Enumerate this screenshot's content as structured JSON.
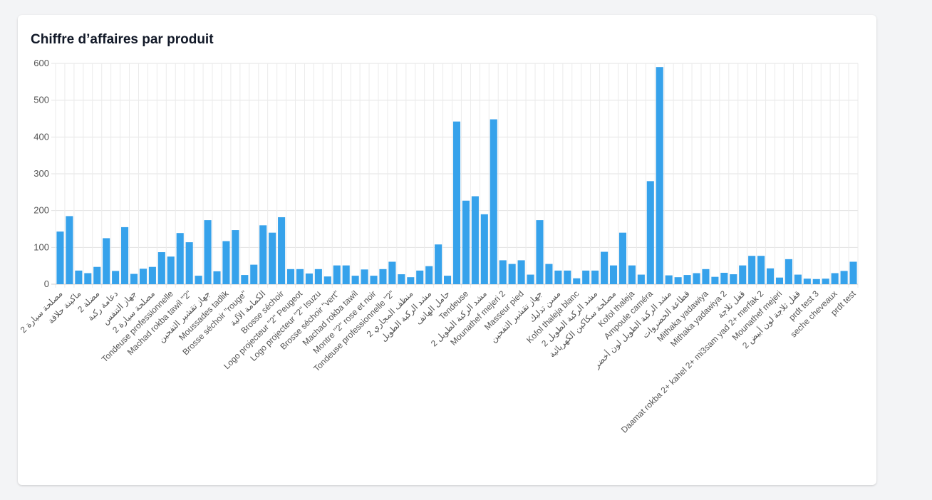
{
  "chart_data": {
    "type": "bar",
    "title": "Chiffre d’affaires par produit",
    "xlabel": "",
    "ylabel": "",
    "ylim": [
      0,
      600
    ],
    "yticks": [
      0,
      100,
      200,
      300,
      400,
      500,
      600
    ],
    "grid": true,
    "legend": "none",
    "bar_color": "#36a2eb",
    "categories": [
      "مصلحة سيارة 2",
      "",
      "ماكينة حلاقة",
      "",
      "مضلة 2",
      "",
      "دعامة ركبة",
      "",
      "جهاز التنفس",
      "",
      "مصلحة سيارة 2",
      "",
      "Tondeuse professionnelle",
      "",
      "Machad rokba tawil \"2\"",
      "",
      "جهاز تقشير التفحين",
      "",
      "Moussades tadlik",
      "",
      "Brosse séchoir \"rouge\"",
      "",
      "الكمامة الآلية",
      "",
      "Brosse séchoir",
      "",
      "Logo projecteur \"2\" Peugeot",
      "",
      "Logo projecteur \"2\" Isuzu",
      "",
      "Brosse séchoir \"vert\"",
      "",
      "Machad rokba tawil",
      "",
      "Montre \"2\" rose et noir",
      "",
      "Tondeuse professionnelle \"2\"",
      "",
      "منظف المجاري 2",
      "",
      "مشد الركبة الطويل",
      "",
      "حامل الهاتف",
      "",
      "Tendeuse",
      "",
      "مشد الركبة الطويل 2",
      "",
      "Mounathef mejeri 2",
      "",
      "Masseur pied",
      "",
      "جهاز تقشير التفحين",
      "",
      "مسن تدليك",
      "",
      "Kofol thaleja blanc",
      "",
      "مشد الركبة الطويل 2",
      "",
      "مصلحة سكاكين الكهربائية",
      "",
      "Kofol thaleja",
      "",
      "Ampoule caméra",
      "",
      "مشد الركبة الطويل لون أخضر",
      "",
      "قطاعة الخضروات",
      "",
      "Mithaka yadawiya",
      "",
      "Mithaka yadawiya 2",
      "",
      "قفل ثلاجة",
      "",
      "Daamat rokba 2+ kahel 2+ mi3sam yad 2+ merfak 2",
      "",
      "Mounathef mejeri",
      "",
      "قفل ثلاجة لون أبيض 2",
      "",
      "prdt test 3",
      "",
      "seche cheveaux",
      "",
      "prdt test"
    ],
    "values": [
      143,
      185,
      37,
      30,
      47,
      125,
      36,
      155,
      28,
      42,
      47,
      87,
      75,
      139,
      114,
      23,
      174,
      35,
      117,
      147,
      25,
      53,
      160,
      140,
      182,
      41,
      41,
      29,
      41,
      21,
      51,
      51,
      23,
      40,
      23,
      41,
      61,
      27,
      19,
      37,
      49,
      108,
      23,
      442,
      227,
      239,
      190,
      448,
      65,
      55,
      65,
      26,
      174,
      55,
      37,
      37,
      16,
      37,
      37,
      88,
      51,
      140,
      51,
      26,
      280,
      590,
      24,
      19,
      25,
      30,
      41,
      20,
      31,
      27,
      51,
      77,
      77,
      43,
      18,
      68,
      26,
      15,
      14,
      15,
      30,
      36,
      61
    ]
  }
}
